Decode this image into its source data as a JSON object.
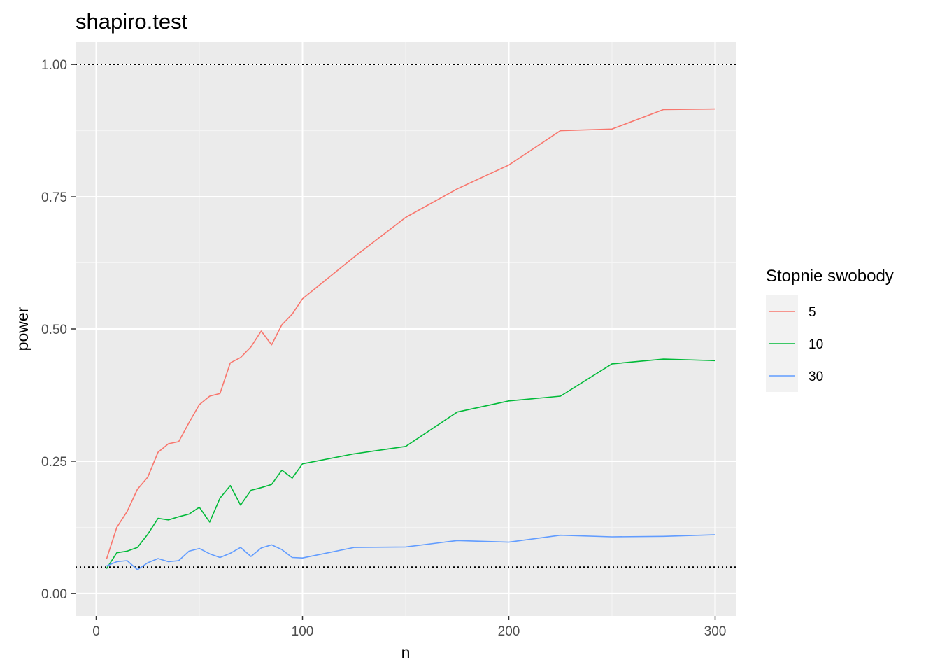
{
  "chart_data": {
    "type": "line",
    "title": "shapiro.test",
    "xlabel": "n",
    "ylabel": "power",
    "xlim": [
      -10,
      310
    ],
    "ylim": [
      -0.0425,
      1.0425
    ],
    "x_ticks": [
      0,
      100,
      200,
      300
    ],
    "x_tick_labels": [
      "0",
      "100",
      "200",
      "300"
    ],
    "y_ticks": [
      0,
      0.25,
      0.5,
      0.75,
      1
    ],
    "y_tick_labels": [
      "0.00",
      "0.25",
      "0.50",
      "0.75",
      "1.00"
    ],
    "grid": true,
    "reference_lines": [
      1.0,
      0.05
    ],
    "legend": {
      "title": "Stopnie swobody",
      "position": "right"
    },
    "series": [
      {
        "name": "5",
        "color": "#F8766D",
        "x": [
          5,
          10,
          15,
          20,
          25,
          30,
          35,
          40,
          45,
          50,
          55,
          60,
          65,
          70,
          75,
          80,
          85,
          90,
          95,
          100,
          125,
          150,
          175,
          200,
          225,
          250,
          275,
          300
        ],
        "y": [
          0.065,
          0.125,
          0.155,
          0.197,
          0.22,
          0.267,
          0.283,
          0.287,
          0.323,
          0.357,
          0.373,
          0.378,
          0.436,
          0.446,
          0.466,
          0.496,
          0.47,
          0.508,
          0.528,
          0.557,
          0.636,
          0.711,
          0.765,
          0.81,
          0.875,
          0.878,
          0.915,
          0.916
        ]
      },
      {
        "name": "10",
        "color": "#00BA38",
        "x": [
          5,
          10,
          15,
          20,
          25,
          30,
          35,
          40,
          45,
          50,
          55,
          60,
          65,
          70,
          75,
          80,
          85,
          90,
          95,
          100,
          125,
          150,
          175,
          200,
          225,
          250,
          275,
          300
        ],
        "y": [
          0.047,
          0.077,
          0.08,
          0.087,
          0.112,
          0.142,
          0.139,
          0.145,
          0.15,
          0.163,
          0.135,
          0.18,
          0.204,
          0.167,
          0.195,
          0.2,
          0.206,
          0.233,
          0.218,
          0.245,
          0.264,
          0.278,
          0.343,
          0.364,
          0.373,
          0.434,
          0.443,
          0.44
        ]
      },
      {
        "name": "30",
        "color": "#619CFF",
        "x": [
          5,
          10,
          15,
          20,
          25,
          30,
          35,
          40,
          45,
          50,
          55,
          60,
          65,
          70,
          75,
          80,
          85,
          90,
          95,
          100,
          125,
          150,
          175,
          200,
          225,
          250,
          275,
          300
        ],
        "y": [
          0.052,
          0.06,
          0.062,
          0.045,
          0.058,
          0.066,
          0.06,
          0.062,
          0.08,
          0.085,
          0.075,
          0.068,
          0.076,
          0.087,
          0.07,
          0.086,
          0.092,
          0.083,
          0.068,
          0.067,
          0.087,
          0.088,
          0.1,
          0.097,
          0.11,
          0.107,
          0.108,
          0.111
        ]
      }
    ]
  }
}
